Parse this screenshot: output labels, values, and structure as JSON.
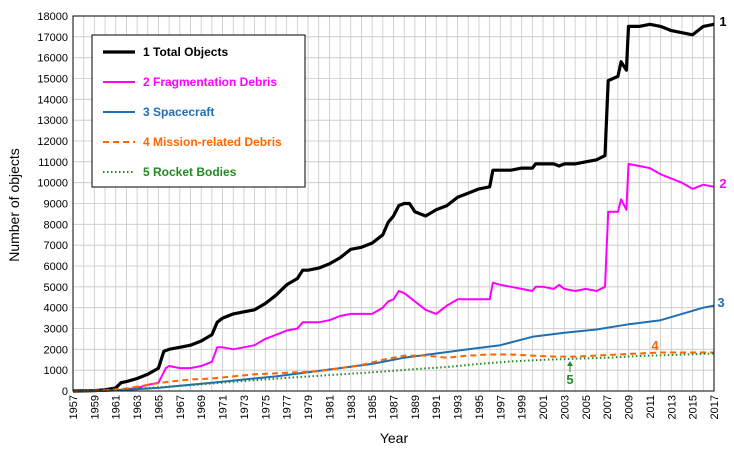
{
  "chart_data": {
    "type": "line",
    "xlabel": "Year",
    "ylabel": "Number of objects",
    "xlim": [
      1957,
      2017
    ],
    "ylim": [
      0,
      18000
    ],
    "x_ticks": [
      "1957",
      "1959",
      "1961",
      "1963",
      "1965",
      "1967",
      "1969",
      "1971",
      "1973",
      "1975",
      "1977",
      "1979",
      "1981",
      "1983",
      "1985",
      "1987",
      "1989",
      "1991",
      "1993",
      "1995",
      "1997",
      "1999",
      "2001",
      "2003",
      "2005",
      "2007",
      "2009",
      "2011",
      "2013",
      "2015",
      "2017"
    ],
    "y_ticks": [
      "0",
      "1000",
      "2000",
      "3000",
      "4000",
      "5000",
      "6000",
      "7000",
      "8000",
      "9000",
      "10000",
      "11000",
      "12000",
      "13000",
      "14000",
      "15000",
      "16000",
      "17000",
      "18000"
    ],
    "grid": true,
    "legend_placement": "top-left",
    "series": [
      {
        "name": "1 Total Objects",
        "label": "1",
        "color": "#000000",
        "style": "solid",
        "points": [
          [
            1957,
            0
          ],
          [
            1959,
            20
          ],
          [
            1960,
            60
          ],
          [
            1961,
            150
          ],
          [
            1961.5,
            400
          ],
          [
            1962,
            450
          ],
          [
            1963,
            600
          ],
          [
            1964,
            800
          ],
          [
            1965,
            1100
          ],
          [
            1965.5,
            1900
          ],
          [
            1966,
            2000
          ],
          [
            1967,
            2100
          ],
          [
            1968,
            2200
          ],
          [
            1969,
            2400
          ],
          [
            1970,
            2700
          ],
          [
            1970.5,
            3300
          ],
          [
            1971,
            3500
          ],
          [
            1972,
            3700
          ],
          [
            1973,
            3800
          ],
          [
            1974,
            3900
          ],
          [
            1975,
            4200
          ],
          [
            1976,
            4600
          ],
          [
            1977,
            5100
          ],
          [
            1978,
            5400
          ],
          [
            1978.5,
            5800
          ],
          [
            1979,
            5800
          ],
          [
            1980,
            5900
          ],
          [
            1981,
            6100
          ],
          [
            1982,
            6400
          ],
          [
            1983,
            6800
          ],
          [
            1984,
            6900
          ],
          [
            1985,
            7100
          ],
          [
            1986,
            7500
          ],
          [
            1986.5,
            8100
          ],
          [
            1987,
            8400
          ],
          [
            1987.5,
            8900
          ],
          [
            1988,
            9000
          ],
          [
            1988.5,
            9000
          ],
          [
            1989,
            8600
          ],
          [
            1990,
            8400
          ],
          [
            1991,
            8700
          ],
          [
            1992,
            8900
          ],
          [
            1993,
            9300
          ],
          [
            1994,
            9500
          ],
          [
            1995,
            9700
          ],
          [
            1996,
            9800
          ],
          [
            1996.3,
            10600
          ],
          [
            1997,
            10600
          ],
          [
            1998,
            10600
          ],
          [
            1999,
            10700
          ],
          [
            2000,
            10700
          ],
          [
            2000.3,
            10900
          ],
          [
            2001,
            10900
          ],
          [
            2002,
            10900
          ],
          [
            2002.5,
            10800
          ],
          [
            2003,
            10900
          ],
          [
            2004,
            10900
          ],
          [
            2005,
            11000
          ],
          [
            2006,
            11100
          ],
          [
            2006.8,
            11300
          ],
          [
            2007.1,
            14900
          ],
          [
            2008,
            15100
          ],
          [
            2008.3,
            15800
          ],
          [
            2008.8,
            15400
          ],
          [
            2009,
            17500
          ],
          [
            2010,
            17500
          ],
          [
            2011,
            17600
          ],
          [
            2012,
            17500
          ],
          [
            2013,
            17300
          ],
          [
            2014,
            17200
          ],
          [
            2015,
            17100
          ],
          [
            2016,
            17500
          ],
          [
            2017,
            17600
          ]
        ]
      },
      {
        "name": "2 Fragmentation Debris",
        "label": "2",
        "color": "#ff00ff",
        "style": "solid",
        "points": [
          [
            1957,
            0
          ],
          [
            1960,
            0
          ],
          [
            1961,
            30
          ],
          [
            1962,
            80
          ],
          [
            1963,
            150
          ],
          [
            1964,
            300
          ],
          [
            1965,
            400
          ],
          [
            1965.7,
            1100
          ],
          [
            1966,
            1200
          ],
          [
            1967,
            1100
          ],
          [
            1968,
            1100
          ],
          [
            1969,
            1200
          ],
          [
            1970,
            1400
          ],
          [
            1970.5,
            2100
          ],
          [
            1971,
            2100
          ],
          [
            1972,
            2000
          ],
          [
            1973,
            2100
          ],
          [
            1974,
            2200
          ],
          [
            1975,
            2500
          ],
          [
            1976,
            2700
          ],
          [
            1977,
            2900
          ],
          [
            1978,
            3000
          ],
          [
            1978.5,
            3300
          ],
          [
            1979,
            3300
          ],
          [
            1980,
            3300
          ],
          [
            1981,
            3400
          ],
          [
            1982,
            3600
          ],
          [
            1983,
            3700
          ],
          [
            1984,
            3700
          ],
          [
            1985,
            3700
          ],
          [
            1986,
            4000
          ],
          [
            1986.5,
            4300
          ],
          [
            1987,
            4400
          ],
          [
            1987.5,
            4800
          ],
          [
            1988,
            4700
          ],
          [
            1989,
            4300
          ],
          [
            1990,
            3900
          ],
          [
            1991,
            3700
          ],
          [
            1992,
            4100
          ],
          [
            1993,
            4400
          ],
          [
            1994,
            4400
          ],
          [
            1995,
            4400
          ],
          [
            1996,
            4400
          ],
          [
            1996.3,
            5200
          ],
          [
            1997,
            5100
          ],
          [
            1998,
            5000
          ],
          [
            1999,
            4900
          ],
          [
            2000,
            4800
          ],
          [
            2000.3,
            5000
          ],
          [
            2001,
            5000
          ],
          [
            2002,
            4900
          ],
          [
            2002.5,
            5100
          ],
          [
            2003,
            4900
          ],
          [
            2004,
            4800
          ],
          [
            2005,
            4900
          ],
          [
            2006,
            4800
          ],
          [
            2006.8,
            5000
          ],
          [
            2007.1,
            8600
          ],
          [
            2008,
            8600
          ],
          [
            2008.3,
            9200
          ],
          [
            2008.8,
            8700
          ],
          [
            2009,
            10900
          ],
          [
            2010,
            10800
          ],
          [
            2011,
            10700
          ],
          [
            2012,
            10400
          ],
          [
            2013,
            10200
          ],
          [
            2014,
            10000
          ],
          [
            2015,
            9700
          ],
          [
            2016,
            9900
          ],
          [
            2017,
            9800
          ]
        ]
      },
      {
        "name": "3 Spacecraft",
        "label": "3",
        "color": "#1f6fb2",
        "style": "solid",
        "points": [
          [
            1957,
            0
          ],
          [
            1960,
            20
          ],
          [
            1962,
            60
          ],
          [
            1965,
            150
          ],
          [
            1967,
            250
          ],
          [
            1970,
            400
          ],
          [
            1973,
            550
          ],
          [
            1976,
            700
          ],
          [
            1979,
            900
          ],
          [
            1982,
            1100
          ],
          [
            1985,
            1300
          ],
          [
            1988,
            1600
          ],
          [
            1991,
            1800
          ],
          [
            1994,
            2000
          ],
          [
            1997,
            2200
          ],
          [
            2000,
            2600
          ],
          [
            2003,
            2800
          ],
          [
            2006,
            2950
          ],
          [
            2009,
            3200
          ],
          [
            2012,
            3400
          ],
          [
            2014,
            3700
          ],
          [
            2016,
            4000
          ],
          [
            2017,
            4100
          ]
        ]
      },
      {
        "name": "4 Mission-related Debris",
        "label": "4",
        "color": "#ff6600",
        "style": "dashed",
        "points": [
          [
            1957,
            0
          ],
          [
            1960,
            40
          ],
          [
            1962,
            120
          ],
          [
            1964,
            300
          ],
          [
            1966,
            450
          ],
          [
            1968,
            550
          ],
          [
            1970,
            600
          ],
          [
            1972,
            700
          ],
          [
            1974,
            800
          ],
          [
            1976,
            850
          ],
          [
            1978,
            900
          ],
          [
            1980,
            950
          ],
          [
            1982,
            1100
          ],
          [
            1984,
            1250
          ],
          [
            1986,
            1500
          ],
          [
            1988,
            1700
          ],
          [
            1990,
            1700
          ],
          [
            1992,
            1600
          ],
          [
            1994,
            1700
          ],
          [
            1996,
            1750
          ],
          [
            1998,
            1750
          ],
          [
            2000,
            1700
          ],
          [
            2002,
            1650
          ],
          [
            2004,
            1650
          ],
          [
            2006,
            1700
          ],
          [
            2008,
            1750
          ],
          [
            2010,
            1800
          ],
          [
            2012,
            1850
          ],
          [
            2014,
            1850
          ],
          [
            2017,
            1850
          ]
        ]
      },
      {
        "name": "5 Rocket Bodies",
        "label": "5",
        "color": "#228B22",
        "style": "dotted",
        "points": [
          [
            1957,
            0
          ],
          [
            1960,
            30
          ],
          [
            1962,
            80
          ],
          [
            1965,
            180
          ],
          [
            1968,
            280
          ],
          [
            1971,
            400
          ],
          [
            1974,
            520
          ],
          [
            1977,
            630
          ],
          [
            1980,
            730
          ],
          [
            1983,
            830
          ],
          [
            1986,
            930
          ],
          [
            1989,
            1050
          ],
          [
            1992,
            1150
          ],
          [
            1995,
            1300
          ],
          [
            1998,
            1420
          ],
          [
            2001,
            1500
          ],
          [
            2004,
            1550
          ],
          [
            2007,
            1600
          ],
          [
            2010,
            1680
          ],
          [
            2013,
            1730
          ],
          [
            2017,
            1800
          ]
        ]
      }
    ]
  }
}
